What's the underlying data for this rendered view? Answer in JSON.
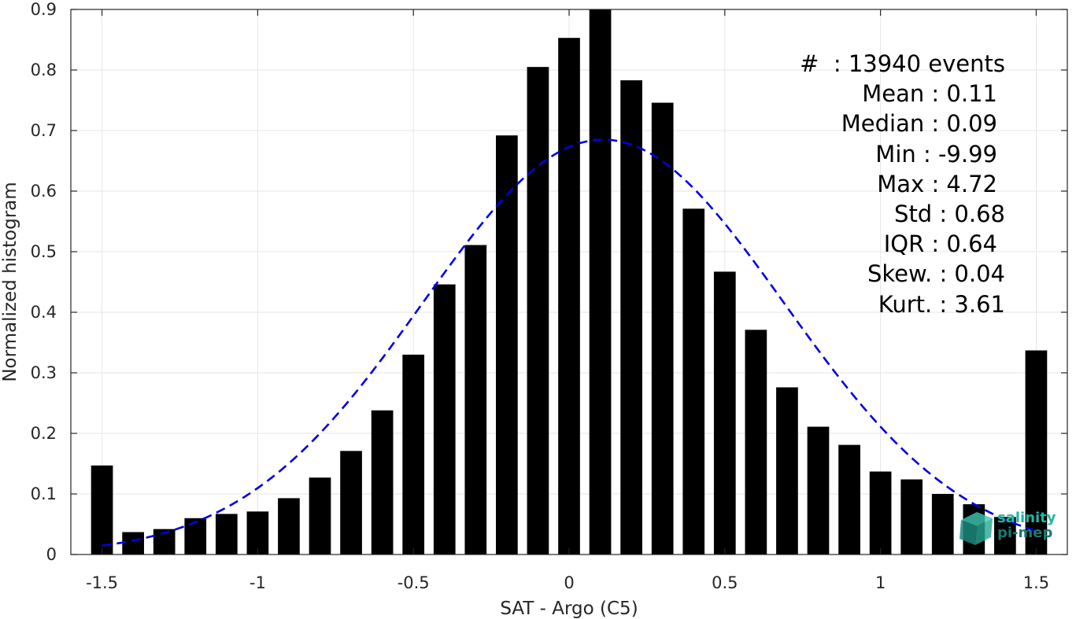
{
  "chart_data": {
    "type": "bar",
    "xlabel": "SAT - Argo (C5)",
    "ylabel": "Normalized histogram",
    "xlim": [
      -1.6,
      1.6
    ],
    "ylim": [
      0,
      0.9
    ],
    "grid": true,
    "xticks": [
      "-1.5",
      "-1",
      "-0.5",
      "0",
      "0.5",
      "1",
      "1.5"
    ],
    "xtick_values": [
      -1.5,
      -1,
      -0.5,
      0,
      0.5,
      1,
      1.5
    ],
    "yticks": [
      "0",
      "0.1",
      "0.2",
      "0.3",
      "0.4",
      "0.5",
      "0.6",
      "0.7",
      "0.8",
      "0.9"
    ],
    "ytick_values": [
      0,
      0.1,
      0.2,
      0.3,
      0.4,
      0.5,
      0.6,
      0.7,
      0.8,
      0.9
    ],
    "bin_width": 0.07,
    "bins": [
      {
        "x": -1.5,
        "y": 0.147
      },
      {
        "x": -1.4,
        "y": 0.037
      },
      {
        "x": -1.3,
        "y": 0.042
      },
      {
        "x": -1.2,
        "y": 0.06
      },
      {
        "x": -1.1,
        "y": 0.067
      },
      {
        "x": -1.0,
        "y": 0.071
      },
      {
        "x": -0.9,
        "y": 0.093
      },
      {
        "x": -0.8,
        "y": 0.127
      },
      {
        "x": -0.7,
        "y": 0.171
      },
      {
        "x": -0.6,
        "y": 0.238
      },
      {
        "x": -0.5,
        "y": 0.33
      },
      {
        "x": -0.4,
        "y": 0.446
      },
      {
        "x": -0.3,
        "y": 0.511
      },
      {
        "x": -0.2,
        "y": 0.692
      },
      {
        "x": -0.1,
        "y": 0.805
      },
      {
        "x": 0.0,
        "y": 0.853
      },
      {
        "x": 0.1,
        "y": 0.9
      },
      {
        "x": 0.2,
        "y": 0.783
      },
      {
        "x": 0.3,
        "y": 0.746
      },
      {
        "x": 0.4,
        "y": 0.571
      },
      {
        "x": 0.5,
        "y": 0.467
      },
      {
        "x": 0.6,
        "y": 0.371
      },
      {
        "x": 0.7,
        "y": 0.276
      },
      {
        "x": 0.8,
        "y": 0.211
      },
      {
        "x": 0.9,
        "y": 0.181
      },
      {
        "x": 1.0,
        "y": 0.137
      },
      {
        "x": 1.1,
        "y": 0.124
      },
      {
        "x": 1.2,
        "y": 0.1
      },
      {
        "x": 1.3,
        "y": 0.083
      },
      {
        "x": 1.4,
        "y": 0.062
      },
      {
        "x": 1.5,
        "y": 0.337
      }
    ],
    "bar_color": "#000000",
    "fit_curve": {
      "style": "dashed",
      "color": "#0000e6",
      "mean": 0.11,
      "std": 0.58,
      "peak": 0.685,
      "x_range": [
        -1.5,
        1.5
      ]
    }
  },
  "stats": {
    "events": "#  : 13940 events",
    "mean": "Mean : 0.11",
    "median": "Median : 0.09",
    "min": "Min : -9.99",
    "max": "Max : 4.72",
    "std": "Std : 0.68",
    "iqr": "IQR : 0.64",
    "skew": "Skew. : 0.04",
    "kurt": "Kurt. : 3.61"
  },
  "logo": {
    "line1": "salinity",
    "line2": "pi-mep",
    "color": "#1fb6a3"
  }
}
